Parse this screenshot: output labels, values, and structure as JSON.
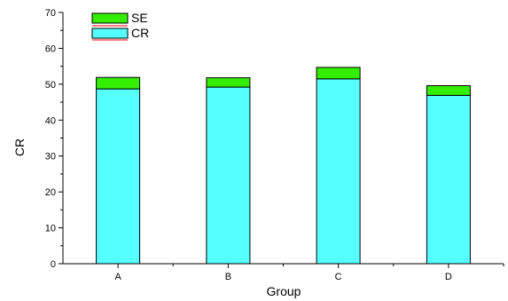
{
  "chart_data": {
    "type": "bar",
    "stacked": true,
    "categories": [
      "A",
      "B",
      "C",
      "D"
    ],
    "series": [
      {
        "name": "CR",
        "values": [
          48.7,
          49.2,
          51.5,
          46.9
        ],
        "color": "#55ffff"
      },
      {
        "name": "SE",
        "values": [
          3.2,
          2.6,
          3.2,
          2.7
        ],
        "color": "#33ee00"
      }
    ],
    "xlabel": "Group",
    "ylabel": "CR",
    "ylim": [
      0,
      70
    ],
    "yticks": [
      0,
      10,
      20,
      30,
      40,
      50,
      60,
      70
    ],
    "grid": false,
    "legend_position": "top-left"
  }
}
